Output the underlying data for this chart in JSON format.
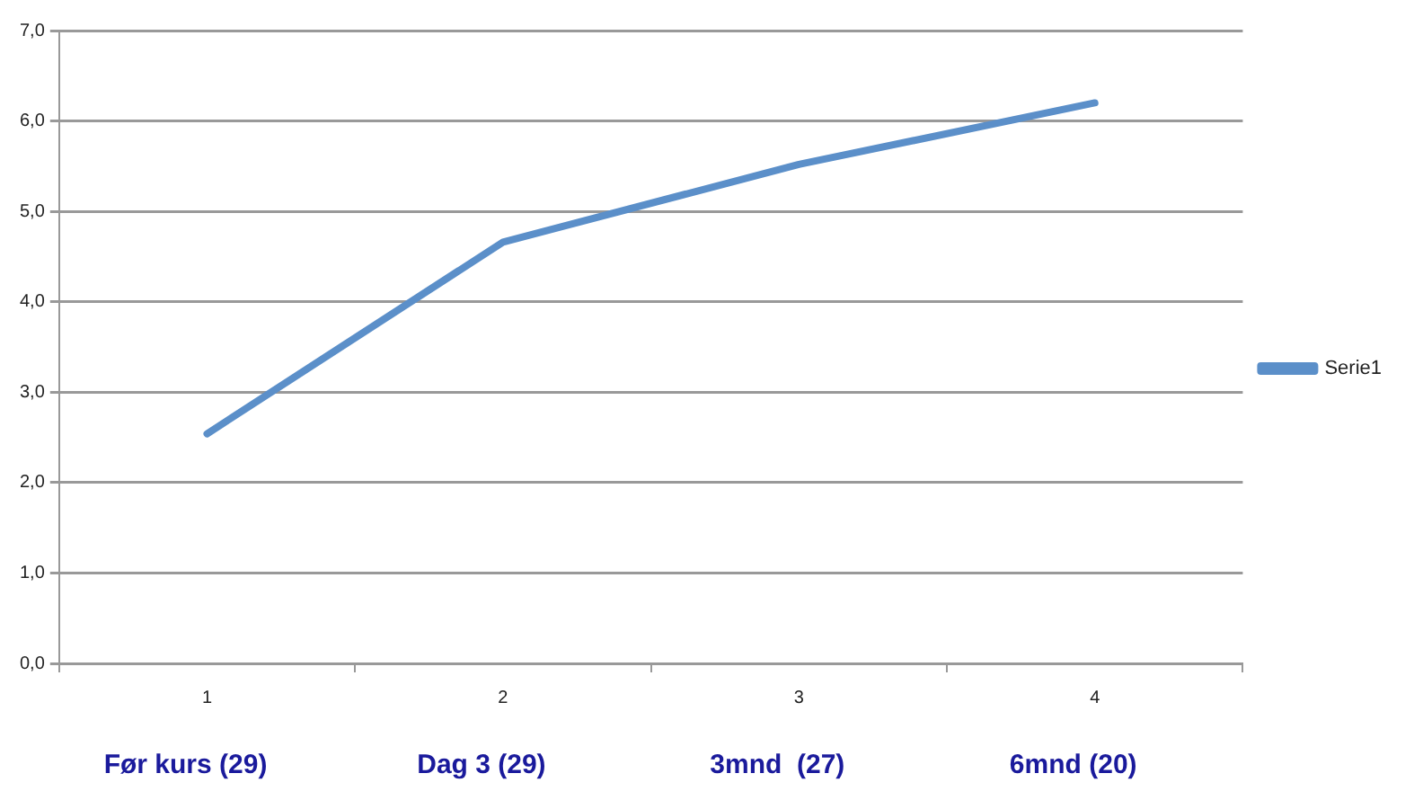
{
  "chart_data": {
    "type": "line",
    "categories": [
      "1",
      "2",
      "3",
      "4"
    ],
    "series": [
      {
        "name": "Serie1",
        "color": "#5b8fc9",
        "values": [
          2.54,
          4.66,
          5.52,
          6.2
        ]
      }
    ],
    "ylim": [
      0,
      7
    ],
    "yticks": [
      {
        "value": 0,
        "label": "0,0"
      },
      {
        "value": 1,
        "label": "1,0"
      },
      {
        "value": 2,
        "label": "2,0"
      },
      {
        "value": 3,
        "label": "3,0"
      },
      {
        "value": 4,
        "label": "4,0"
      },
      {
        "value": 5,
        "label": "5,0"
      },
      {
        "value": 6,
        "label": "6,0"
      },
      {
        "value": 7,
        "label": "7,0"
      }
    ],
    "grid": "y",
    "legend": "right",
    "marker": "none",
    "line_style": "solid",
    "annotations": [
      "Før kurs (29)",
      "Dag 3 (29)",
      "3mnd  (27)",
      "6mnd (20)"
    ]
  }
}
